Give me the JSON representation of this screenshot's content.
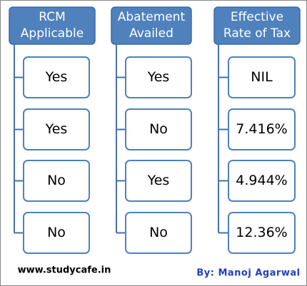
{
  "columns": [
    {
      "header": [
        "RCM",
        "Applicable"
      ],
      "items": [
        "Yes",
        "Yes",
        "No",
        "No"
      ]
    },
    {
      "header": [
        "Abatement",
        "Availed"
      ],
      "items": [
        "Yes",
        "No",
        "Yes",
        "No"
      ]
    },
    {
      "header": [
        "Effective",
        "Rate of Tax"
      ],
      "items": [
        "NIL",
        "7.416%",
        "4.944%",
        "12.36%"
      ]
    }
  ],
  "footer": {
    "website": "www.studycafe.in",
    "author": "By: Manoj Agarwal"
  }
}
